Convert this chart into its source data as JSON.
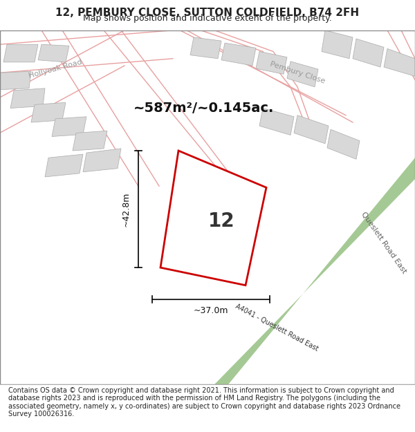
{
  "title": "12, PEMBURY CLOSE, SUTTON COLDFIELD, B74 2FH",
  "subtitle": "Map shows position and indicative extent of the property.",
  "footer": "Contains OS data © Crown copyright and database right 2021. This information is subject to Crown copyright and database rights 2023 and is reproduced with the permission of HM Land Registry. The polygons (including the associated geometry, namely x, y co-ordinates) are subject to Crown copyright and database rights 2023 Ordnance Survey 100026316.",
  "area_label": "~587m²/~0.145ac.",
  "plot_number": "12",
  "dim_height": "~42.8m",
  "dim_width": "~37.0m",
  "road_label": "A4041 - Queslett Road East",
  "road_label2": "Queslett Road East",
  "road_label3": "Pembury Close",
  "road_label4": "Hollyoak Road",
  "background_color": "#f5f5f5",
  "map_background": "#f0efef",
  "plot_color": "#cc0000",
  "road_green_color": "#8fbc7a",
  "gray_block_color": "#d8d8d8",
  "road_line_color": "#e8a0a0",
  "title_fontsize": 11,
  "subtitle_fontsize": 9,
  "footer_fontsize": 7
}
